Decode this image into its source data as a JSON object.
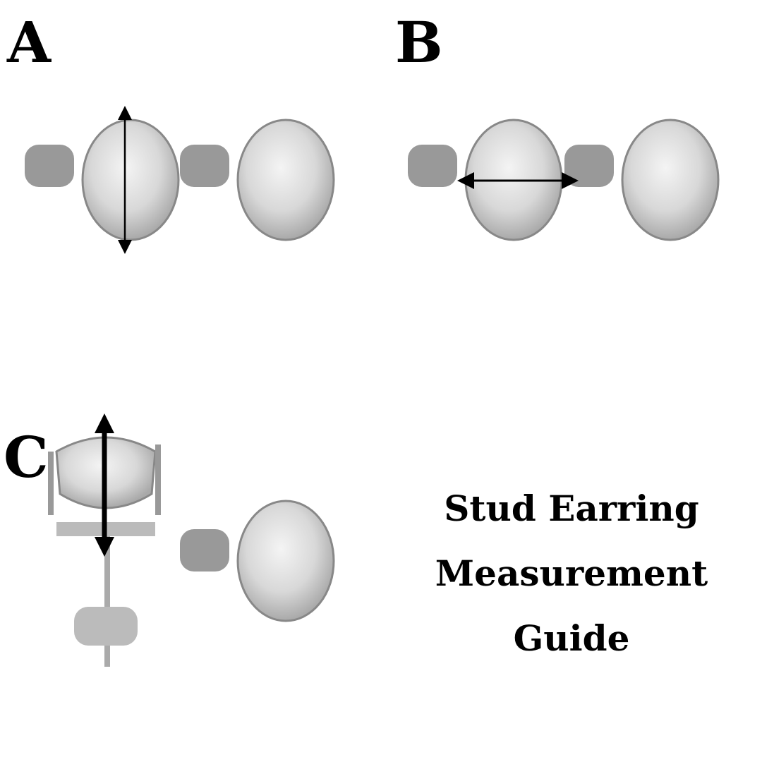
{
  "labels": {
    "a": "A",
    "b": "B",
    "c": "C"
  },
  "title": [
    "Stud Earring",
    "Measurement",
    "Guide"
  ]
}
